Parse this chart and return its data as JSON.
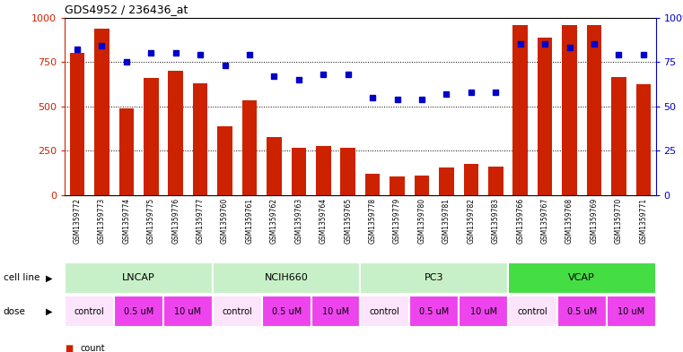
{
  "title": "GDS4952 / 236436_at",
  "samples": [
    "GSM1359772",
    "GSM1359773",
    "GSM1359774",
    "GSM1359775",
    "GSM1359776",
    "GSM1359777",
    "GSM1359760",
    "GSM1359761",
    "GSM1359762",
    "GSM1359763",
    "GSM1359764",
    "GSM1359765",
    "GSM1359778",
    "GSM1359779",
    "GSM1359780",
    "GSM1359781",
    "GSM1359782",
    "GSM1359783",
    "GSM1359766",
    "GSM1359767",
    "GSM1359768",
    "GSM1359769",
    "GSM1359770",
    "GSM1359771"
  ],
  "counts": [
    800,
    940,
    490,
    660,
    700,
    630,
    390,
    535,
    330,
    270,
    280,
    270,
    120,
    105,
    110,
    155,
    175,
    160,
    960,
    885,
    960,
    960,
    665,
    625
  ],
  "percentile_ranks": [
    82,
    84,
    75,
    80,
    80,
    79,
    73,
    79,
    67,
    65,
    68,
    68,
    55,
    54,
    54,
    57,
    58,
    58,
    85,
    85,
    83,
    85,
    79,
    79
  ],
  "cell_lines": [
    {
      "name": "LNCAP",
      "start": 0,
      "end": 6,
      "color": "#c8f0c8"
    },
    {
      "name": "NCIH660",
      "start": 6,
      "end": 12,
      "color": "#c8f0c8"
    },
    {
      "name": "PC3",
      "start": 12,
      "end": 18,
      "color": "#c8f0c8"
    },
    {
      "name": "VCAP",
      "start": 18,
      "end": 24,
      "color": "#44dd44"
    }
  ],
  "dose_groups": [
    {
      "label": "control",
      "start": 0,
      "end": 2,
      "bg": "#fce4fc"
    },
    {
      "label": "0.5 uM",
      "start": 2,
      "end": 4,
      "bg": "#ee44ee"
    },
    {
      "label": "10 uM",
      "start": 4,
      "end": 6,
      "bg": "#ee44ee"
    },
    {
      "label": "control",
      "start": 6,
      "end": 8,
      "bg": "#fce4fc"
    },
    {
      "label": "0.5 uM",
      "start": 8,
      "end": 10,
      "bg": "#ee44ee"
    },
    {
      "label": "10 uM",
      "start": 10,
      "end": 12,
      "bg": "#ee44ee"
    },
    {
      "label": "control",
      "start": 12,
      "end": 14,
      "bg": "#fce4fc"
    },
    {
      "label": "0.5 uM",
      "start": 14,
      "end": 16,
      "bg": "#ee44ee"
    },
    {
      "label": "10 uM",
      "start": 16,
      "end": 18,
      "bg": "#ee44ee"
    },
    {
      "label": "control",
      "start": 18,
      "end": 20,
      "bg": "#fce4fc"
    },
    {
      "label": "0.5 uM",
      "start": 20,
      "end": 22,
      "bg": "#ee44ee"
    },
    {
      "label": "10 uM",
      "start": 22,
      "end": 24,
      "bg": "#ee44ee"
    }
  ],
  "bar_color": "#cc2200",
  "dot_color": "#0000cc",
  "ylim_left": [
    0,
    1000
  ],
  "ylim_right": [
    0,
    100
  ],
  "yticks_left": [
    0,
    250,
    500,
    750,
    1000
  ],
  "yticks_right": [
    0,
    25,
    50,
    75,
    100
  ],
  "grid_lines": [
    250,
    500,
    750
  ],
  "bg_color": "#ffffff",
  "plot_bg": "#ffffff",
  "xtick_bg": "#d8d8d8"
}
